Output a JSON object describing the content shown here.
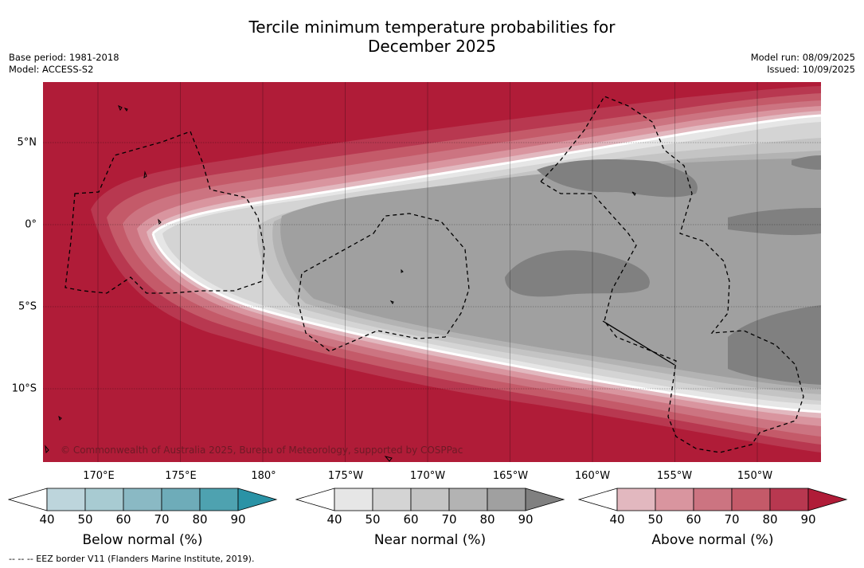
{
  "title_line1": "Tercile minimum temperature probabilities for",
  "title_line2": "December 2025",
  "base_period": "Base period: 1981-2018",
  "model": "Model: ACCESS-S2",
  "model_run": "Model run: 08/09/2025",
  "issued": "Issued: 10/09/2025",
  "copyright": "© Commonwealth of Australia 2025, Bureau of Meteorology, supported by COSPPac",
  "footnote": "--  --  -- EEZ border V11 (Flanders Marine Institute, 2019).",
  "longitude_labels": [
    "170°E",
    "175°E",
    "180°",
    "175°W",
    "170°W",
    "165°W",
    "160°W",
    "155°W",
    "150°W"
  ],
  "latitude_labels": [
    "5°N",
    "0°",
    "5°S",
    "10°S"
  ],
  "map_extent": {
    "lon_range": [
      "166.6°E",
      "146°W"
    ],
    "lat_range": [
      "14.3°S",
      "8.5°N"
    ]
  },
  "colorbars": [
    {
      "title": "Below normal (%)",
      "ticks": [
        "40",
        "50",
        "60",
        "70",
        "80",
        "90"
      ],
      "colors": [
        "#ffffff",
        "#bdd5dc",
        "#a8cbd2",
        "#8ab9c4",
        "#6eacb9",
        "#4ea2b0",
        "#2a93a6"
      ]
    },
    {
      "title": "Near normal (%)",
      "ticks": [
        "40",
        "50",
        "60",
        "70",
        "80",
        "90"
      ],
      "colors": [
        "#ffffff",
        "#e6e6e6",
        "#d4d4d4",
        "#c4c4c4",
        "#b3b3b3",
        "#a0a0a0",
        "#808080"
      ]
    },
    {
      "title": "Above normal (%)",
      "ticks": [
        "40",
        "50",
        "60",
        "70",
        "80",
        "90"
      ],
      "colors": [
        "#ffffff",
        "#e2b8bf",
        "#d9959f",
        "#cc7481",
        "#c45a69",
        "#b83850",
        "#b01c38"
      ]
    }
  ]
}
